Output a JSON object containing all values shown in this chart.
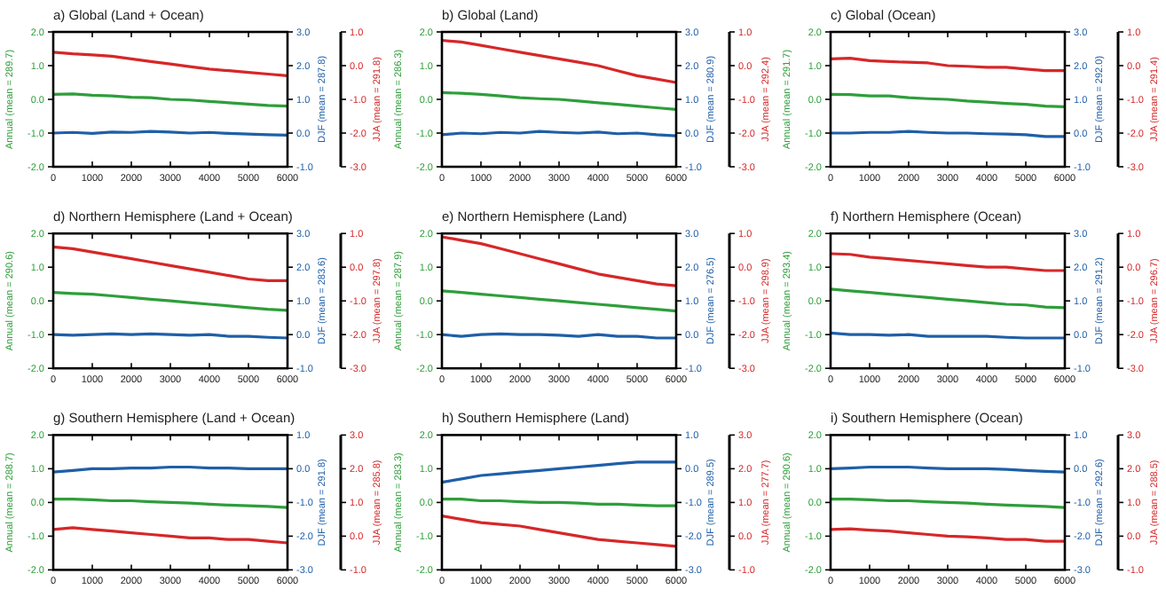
{
  "chart_data": [
    {
      "type": "line",
      "title": "a) Global (Land + Ocean)",
      "ylabel": "Annual (mean = 289.7)",
      "y2label": "DJF (mean = 287.8)",
      "y3label": "JJA (mean = 291.8)",
      "x": [
        0,
        500,
        1000,
        1500,
        2000,
        2500,
        3000,
        3500,
        4000,
        4500,
        5000,
        5500,
        6000
      ],
      "xlim": [
        0,
        6000
      ],
      "xticks": [
        0,
        1000,
        2000,
        3000,
        4000,
        5000,
        6000
      ],
      "ylim": [
        -2,
        2
      ],
      "yticks": [
        {
          "value": -2,
          "label": "-2.0"
        },
        {
          "value": -1,
          "label": "-1.0"
        },
        {
          "value": 0,
          "label": "0.0"
        },
        {
          "value": 1,
          "label": "1.0"
        },
        {
          "value": 2,
          "label": "2.0"
        }
      ],
      "y2lim": [
        -1,
        3
      ],
      "y2ticks": [
        {
          "value": -1,
          "label": "-1.0"
        },
        {
          "value": 0,
          "label": "0.0"
        },
        {
          "value": 1,
          "label": "1.0"
        },
        {
          "value": 2,
          "label": "2.0"
        },
        {
          "value": 3,
          "label": "3.0"
        }
      ],
      "y3lim": [
        -3,
        1
      ],
      "y3ticks": [
        {
          "value": -3,
          "label": "-3.0"
        },
        {
          "value": -2,
          "label": "-2.0"
        },
        {
          "value": -1,
          "label": "-1.0"
        },
        {
          "value": 0,
          "label": "0.0"
        },
        {
          "value": 1,
          "label": "1.0"
        }
      ],
      "grid": false,
      "line_style": "solid",
      "series": [
        {
          "color": "#2e9e3a",
          "values": [
            0.15,
            0.16,
            0.12,
            0.1,
            0.06,
            0.05,
            0.0,
            -0.02,
            -0.06,
            -0.1,
            -0.14,
            -0.18,
            -0.2
          ]
        },
        {
          "color": "#1f5fa8",
          "axis": "y2",
          "values": [
            0.0,
            0.02,
            -0.01,
            0.03,
            0.02,
            0.05,
            0.03,
            0.0,
            0.02,
            -0.01,
            -0.03,
            -0.05,
            -0.06
          ]
        },
        {
          "color": "#d62728",
          "axis": "y3",
          "values": [
            0.4,
            0.35,
            0.32,
            0.28,
            0.2,
            0.12,
            0.05,
            -0.03,
            -0.1,
            -0.15,
            -0.2,
            -0.25,
            -0.3
          ]
        }
      ]
    },
    {
      "type": "line",
      "title": "b) Global (Land)",
      "ylabel": "Annual (mean = 286.3)",
      "y2label": "DJF (mean = 280.9)",
      "y3label": "JJA (mean = 292.4)",
      "x": [
        0,
        500,
        1000,
        1500,
        2000,
        2500,
        3000,
        3500,
        4000,
        4500,
        5000,
        5500,
        6000
      ],
      "xlim": [
        0,
        6000
      ],
      "xticks": [
        0,
        1000,
        2000,
        3000,
        4000,
        5000,
        6000
      ],
      "ylim": [
        -2,
        2
      ],
      "yticks": [
        {
          "value": -2,
          "label": "-2.0"
        },
        {
          "value": -1,
          "label": "-1.0"
        },
        {
          "value": 0,
          "label": "0.0"
        },
        {
          "value": 1,
          "label": "1.0"
        },
        {
          "value": 2,
          "label": "2.0"
        }
      ],
      "y2lim": [
        -1,
        3
      ],
      "y2ticks": [
        {
          "value": -1,
          "label": "-1.0"
        },
        {
          "value": 0,
          "label": "0.0"
        },
        {
          "value": 1,
          "label": "1.0"
        },
        {
          "value": 2,
          "label": "2.0"
        },
        {
          "value": 3,
          "label": "3.0"
        }
      ],
      "y3lim": [
        -3,
        1
      ],
      "y3ticks": [
        {
          "value": -3,
          "label": "-3.0"
        },
        {
          "value": -2,
          "label": "-2.0"
        },
        {
          "value": -1,
          "label": "-1.0"
        },
        {
          "value": 0,
          "label": "0.0"
        },
        {
          "value": 1,
          "label": "1.0"
        }
      ],
      "grid": false,
      "line_style": "solid",
      "series": [
        {
          "color": "#2e9e3a",
          "values": [
            0.2,
            0.18,
            0.15,
            0.1,
            0.05,
            0.02,
            0.0,
            -0.05,
            -0.1,
            -0.15,
            -0.2,
            -0.25,
            -0.3
          ]
        },
        {
          "color": "#1f5fa8",
          "axis": "y2",
          "values": [
            -0.05,
            0.0,
            -0.02,
            0.02,
            0.0,
            0.05,
            0.02,
            0.0,
            0.03,
            -0.02,
            0.0,
            -0.05,
            -0.08
          ]
        },
        {
          "color": "#d62728",
          "axis": "y3",
          "values": [
            0.75,
            0.7,
            0.6,
            0.5,
            0.4,
            0.3,
            0.2,
            0.1,
            0.0,
            -0.15,
            -0.3,
            -0.4,
            -0.5
          ]
        }
      ]
    },
    {
      "type": "line",
      "title": "c) Global (Ocean)",
      "ylabel": "Annual (mean = 291.7)",
      "y2label": "DJF (mean = 292.0)",
      "y3label": "JJA (mean = 291.4)",
      "x": [
        0,
        500,
        1000,
        1500,
        2000,
        2500,
        3000,
        3500,
        4000,
        4500,
        5000,
        5500,
        6000
      ],
      "xlim": [
        0,
        6000
      ],
      "xticks": [
        0,
        1000,
        2000,
        3000,
        4000,
        5000,
        6000
      ],
      "ylim": [
        -2,
        2
      ],
      "yticks": [
        {
          "value": -2,
          "label": "-2.0"
        },
        {
          "value": -1,
          "label": "-1.0"
        },
        {
          "value": 0,
          "label": "0.0"
        },
        {
          "value": 1,
          "label": "1.0"
        },
        {
          "value": 2,
          "label": "2.0"
        }
      ],
      "y2lim": [
        -1,
        3
      ],
      "y2ticks": [
        {
          "value": -1,
          "label": "-1.0"
        },
        {
          "value": 0,
          "label": "0.0"
        },
        {
          "value": 1,
          "label": "1.0"
        },
        {
          "value": 2,
          "label": "2.0"
        },
        {
          "value": 3,
          "label": "3.0"
        }
      ],
      "y3lim": [
        -3,
        1
      ],
      "y3ticks": [
        {
          "value": -3,
          "label": "-3.0"
        },
        {
          "value": -2,
          "label": "-2.0"
        },
        {
          "value": -1,
          "label": "-1.0"
        },
        {
          "value": 0,
          "label": "0.0"
        },
        {
          "value": 1,
          "label": "1.0"
        }
      ],
      "grid": false,
      "line_style": "solid",
      "series": [
        {
          "color": "#2e9e3a",
          "values": [
            0.15,
            0.14,
            0.1,
            0.1,
            0.05,
            0.02,
            0.0,
            -0.05,
            -0.08,
            -0.12,
            -0.15,
            -0.2,
            -0.22
          ]
        },
        {
          "color": "#1f5fa8",
          "axis": "y2",
          "values": [
            0.0,
            0.0,
            0.02,
            0.02,
            0.05,
            0.02,
            0.0,
            0.0,
            -0.02,
            -0.03,
            -0.05,
            -0.1,
            -0.1
          ]
        },
        {
          "color": "#d62728",
          "axis": "y3",
          "values": [
            0.2,
            0.22,
            0.15,
            0.12,
            0.1,
            0.08,
            0.0,
            -0.02,
            -0.05,
            -0.05,
            -0.1,
            -0.15,
            -0.15
          ]
        }
      ]
    },
    {
      "type": "line",
      "title": "d) Northern Hemisphere (Land + Ocean)",
      "ylabel": "Annual (mean = 290.6)",
      "y2label": "DJF (mean = 283.6)",
      "y3label": "JJA (mean = 297.8)",
      "x": [
        0,
        500,
        1000,
        1500,
        2000,
        2500,
        3000,
        3500,
        4000,
        4500,
        5000,
        5500,
        6000
      ],
      "xlim": [
        0,
        6000
      ],
      "xticks": [
        0,
        1000,
        2000,
        3000,
        4000,
        5000,
        6000
      ],
      "ylim": [
        -2,
        2
      ],
      "yticks": [
        {
          "value": -2,
          "label": "-2.0"
        },
        {
          "value": -1,
          "label": "-1.0"
        },
        {
          "value": 0,
          "label": "0.0"
        },
        {
          "value": 1,
          "label": "1.0"
        },
        {
          "value": 2,
          "label": "2.0"
        }
      ],
      "y2lim": [
        -1,
        3
      ],
      "y2ticks": [
        {
          "value": -1,
          "label": "-1.0"
        },
        {
          "value": 0,
          "label": "0.0"
        },
        {
          "value": 1,
          "label": "1.0"
        },
        {
          "value": 2,
          "label": "2.0"
        },
        {
          "value": 3,
          "label": "3.0"
        }
      ],
      "y3lim": [
        -3,
        1
      ],
      "y3ticks": [
        {
          "value": -3,
          "label": "-3.0"
        },
        {
          "value": -2,
          "label": "-2.0"
        },
        {
          "value": -1,
          "label": "-1.0"
        },
        {
          "value": 0,
          "label": "0.0"
        },
        {
          "value": 1,
          "label": "1.0"
        }
      ],
      "grid": false,
      "line_style": "solid",
      "series": [
        {
          "color": "#2e9e3a",
          "values": [
            0.25,
            0.22,
            0.2,
            0.15,
            0.1,
            0.05,
            0.0,
            -0.05,
            -0.1,
            -0.15,
            -0.2,
            -0.25,
            -0.28
          ]
        },
        {
          "color": "#1f5fa8",
          "axis": "y2",
          "values": [
            0.0,
            -0.02,
            0.0,
            0.02,
            0.0,
            0.02,
            0.0,
            -0.02,
            0.0,
            -0.05,
            -0.05,
            -0.08,
            -0.1
          ]
        },
        {
          "color": "#d62728",
          "axis": "y3",
          "values": [
            0.6,
            0.55,
            0.45,
            0.35,
            0.25,
            0.15,
            0.05,
            -0.05,
            -0.15,
            -0.25,
            -0.35,
            -0.4,
            -0.4
          ]
        }
      ]
    },
    {
      "type": "line",
      "title": "e) Northern Hemisphere (Land)",
      "ylabel": "Annual (mean = 287.9)",
      "y2label": "DJF (mean = 276.5)",
      "y3label": "JJA (mean = 298.9)",
      "x": [
        0,
        500,
        1000,
        1500,
        2000,
        2500,
        3000,
        3500,
        4000,
        4500,
        5000,
        5500,
        6000
      ],
      "xlim": [
        0,
        6000
      ],
      "xticks": [
        0,
        1000,
        2000,
        3000,
        4000,
        5000,
        6000
      ],
      "ylim": [
        -2,
        2
      ],
      "yticks": [
        {
          "value": -2,
          "label": "-2.0"
        },
        {
          "value": -1,
          "label": "-1.0"
        },
        {
          "value": 0,
          "label": "0.0"
        },
        {
          "value": 1,
          "label": "1.0"
        },
        {
          "value": 2,
          "label": "2.0"
        }
      ],
      "y2lim": [
        -1,
        3
      ],
      "y2ticks": [
        {
          "value": -1,
          "label": "-1.0"
        },
        {
          "value": 0,
          "label": "0.0"
        },
        {
          "value": 1,
          "label": "1.0"
        },
        {
          "value": 2,
          "label": "2.0"
        },
        {
          "value": 3,
          "label": "3.0"
        }
      ],
      "y3lim": [
        -3,
        1
      ],
      "y3ticks": [
        {
          "value": -3,
          "label": "-3.0"
        },
        {
          "value": -2,
          "label": "-2.0"
        },
        {
          "value": -1,
          "label": "-1.0"
        },
        {
          "value": 0,
          "label": "0.0"
        },
        {
          "value": 1,
          "label": "1.0"
        }
      ],
      "grid": false,
      "line_style": "solid",
      "series": [
        {
          "color": "#2e9e3a",
          "values": [
            0.3,
            0.25,
            0.2,
            0.15,
            0.1,
            0.05,
            0.0,
            -0.05,
            -0.1,
            -0.15,
            -0.2,
            -0.25,
            -0.3
          ]
        },
        {
          "color": "#1f5fa8",
          "axis": "y2",
          "values": [
            0.0,
            -0.05,
            0.0,
            0.02,
            0.0,
            0.0,
            -0.02,
            -0.05,
            0.0,
            -0.05,
            -0.05,
            -0.1,
            -0.1
          ]
        },
        {
          "color": "#d62728",
          "axis": "y3",
          "values": [
            0.9,
            0.8,
            0.7,
            0.55,
            0.4,
            0.25,
            0.1,
            -0.05,
            -0.2,
            -0.3,
            -0.4,
            -0.5,
            -0.55
          ]
        }
      ]
    },
    {
      "type": "line",
      "title": "f) Northern Hemisphere (Ocean)",
      "ylabel": "Annual (mean = 293.4)",
      "y2label": "DJF (mean = 291.2)",
      "y3label": "JJA (mean = 296.7)",
      "x": [
        0,
        500,
        1000,
        1500,
        2000,
        2500,
        3000,
        3500,
        4000,
        4500,
        5000,
        5500,
        6000
      ],
      "xlim": [
        0,
        6000
      ],
      "xticks": [
        0,
        1000,
        2000,
        3000,
        4000,
        5000,
        6000
      ],
      "ylim": [
        -2,
        2
      ],
      "yticks": [
        {
          "value": -2,
          "label": "-2.0"
        },
        {
          "value": -1,
          "label": "-1.0"
        },
        {
          "value": 0,
          "label": "0.0"
        },
        {
          "value": 1,
          "label": "1.0"
        },
        {
          "value": 2,
          "label": "2.0"
        }
      ],
      "y2lim": [
        -1,
        3
      ],
      "y2ticks": [
        {
          "value": -1,
          "label": "-1.0"
        },
        {
          "value": 0,
          "label": "0.0"
        },
        {
          "value": 1,
          "label": "1.0"
        },
        {
          "value": 2,
          "label": "2.0"
        },
        {
          "value": 3,
          "label": "3.0"
        }
      ],
      "y3lim": [
        -3,
        1
      ],
      "y3ticks": [
        {
          "value": -3,
          "label": "-3.0"
        },
        {
          "value": -2,
          "label": "-2.0"
        },
        {
          "value": -1,
          "label": "-1.0"
        },
        {
          "value": 0,
          "label": "0.0"
        },
        {
          "value": 1,
          "label": "1.0"
        }
      ],
      "grid": false,
      "line_style": "solid",
      "series": [
        {
          "color": "#2e9e3a",
          "values": [
            0.35,
            0.3,
            0.25,
            0.2,
            0.15,
            0.1,
            0.05,
            0.0,
            -0.05,
            -0.1,
            -0.12,
            -0.18,
            -0.2
          ]
        },
        {
          "color": "#1f5fa8",
          "axis": "y2",
          "values": [
            0.05,
            0.0,
            0.0,
            -0.02,
            0.0,
            -0.05,
            -0.05,
            -0.05,
            -0.05,
            -0.08,
            -0.1,
            -0.1,
            -0.1
          ]
        },
        {
          "color": "#d62728",
          "axis": "y3",
          "values": [
            0.4,
            0.38,
            0.3,
            0.25,
            0.2,
            0.15,
            0.1,
            0.05,
            0.0,
            0.0,
            -0.05,
            -0.1,
            -0.1
          ]
        }
      ]
    },
    {
      "type": "line",
      "title": "g) Southern Hemisphere (Land + Ocean)",
      "ylabel": "Annual (mean = 288.7)",
      "y2label": "DJF (mean = 291.8)",
      "y3label": "JJA (mean = 285.8)",
      "x": [
        0,
        500,
        1000,
        1500,
        2000,
        2500,
        3000,
        3500,
        4000,
        4500,
        5000,
        5500,
        6000
      ],
      "xlim": [
        0,
        6000
      ],
      "xticks": [
        0,
        1000,
        2000,
        3000,
        4000,
        5000,
        6000
      ],
      "ylim": [
        -2,
        2
      ],
      "yticks": [
        {
          "value": -2,
          "label": "-2.0"
        },
        {
          "value": -1,
          "label": "-1.0"
        },
        {
          "value": 0,
          "label": "0.0"
        },
        {
          "value": 1,
          "label": "1.0"
        },
        {
          "value": 2,
          "label": "2.0"
        }
      ],
      "y2lim": [
        -3,
        1
      ],
      "y2ticks": [
        {
          "value": -3,
          "label": "-3.0"
        },
        {
          "value": -2,
          "label": "-2.0"
        },
        {
          "value": -1,
          "label": "-1.0"
        },
        {
          "value": 0,
          "label": "0.0"
        },
        {
          "value": 1,
          "label": "1.0"
        }
      ],
      "y3lim": [
        -1,
        3
      ],
      "y3ticks": [
        {
          "value": -1,
          "label": "-1.0"
        },
        {
          "value": 0,
          "label": "0.0"
        },
        {
          "value": 1,
          "label": "1.0"
        },
        {
          "value": 2,
          "label": "2.0"
        },
        {
          "value": 3,
          "label": "3.0"
        }
      ],
      "grid": false,
      "line_style": "solid",
      "series": [
        {
          "color": "#2e9e3a",
          "values": [
            0.1,
            0.1,
            0.08,
            0.05,
            0.05,
            0.02,
            0.0,
            -0.02,
            -0.05,
            -0.08,
            -0.1,
            -0.12,
            -0.15
          ]
        },
        {
          "color": "#1f5fa8",
          "axis": "y2",
          "values": [
            -0.1,
            -0.05,
            0.0,
            0.0,
            0.02,
            0.02,
            0.05,
            0.05,
            0.02,
            0.02,
            0.0,
            0.0,
            0.0
          ]
        },
        {
          "color": "#d62728",
          "axis": "y3",
          "values": [
            0.2,
            0.25,
            0.2,
            0.15,
            0.1,
            0.05,
            0.0,
            -0.05,
            -0.05,
            -0.1,
            -0.1,
            -0.15,
            -0.2
          ]
        }
      ]
    },
    {
      "type": "line",
      "title": "h) Southern Hemisphere (Land)",
      "ylabel": "Annual (mean = 283.3)",
      "y2label": "DJF (mean = 289.5)",
      "y3label": "JJA (mean = 277.7)",
      "x": [
        0,
        500,
        1000,
        1500,
        2000,
        2500,
        3000,
        3500,
        4000,
        4500,
        5000,
        5500,
        6000
      ],
      "xlim": [
        0,
        6000
      ],
      "xticks": [
        0,
        1000,
        2000,
        3000,
        4000,
        5000,
        6000
      ],
      "ylim": [
        -2,
        2
      ],
      "yticks": [
        {
          "value": -2,
          "label": "-2.0"
        },
        {
          "value": -1,
          "label": "-1.0"
        },
        {
          "value": 0,
          "label": "0.0"
        },
        {
          "value": 1,
          "label": "1.0"
        },
        {
          "value": 2,
          "label": "2.0"
        }
      ],
      "y2lim": [
        -3,
        1
      ],
      "y2ticks": [
        {
          "value": -3,
          "label": "-3.0"
        },
        {
          "value": -2,
          "label": "-2.0"
        },
        {
          "value": -1,
          "label": "-1.0"
        },
        {
          "value": 0,
          "label": "0.0"
        },
        {
          "value": 1,
          "label": "1.0"
        }
      ],
      "y3lim": [
        -1,
        3
      ],
      "y3ticks": [
        {
          "value": -1,
          "label": "-1.0"
        },
        {
          "value": 0,
          "label": "0.0"
        },
        {
          "value": 1,
          "label": "1.0"
        },
        {
          "value": 2,
          "label": "2.0"
        },
        {
          "value": 3,
          "label": "3.0"
        }
      ],
      "grid": false,
      "line_style": "solid",
      "series": [
        {
          "color": "#2e9e3a",
          "values": [
            0.1,
            0.1,
            0.05,
            0.05,
            0.02,
            0.0,
            0.0,
            -0.02,
            -0.05,
            -0.05,
            -0.08,
            -0.1,
            -0.1
          ]
        },
        {
          "color": "#1f5fa8",
          "axis": "y2",
          "values": [
            -0.4,
            -0.3,
            -0.2,
            -0.15,
            -0.1,
            -0.05,
            0.0,
            0.05,
            0.1,
            0.15,
            0.2,
            0.2,
            0.2
          ]
        },
        {
          "color": "#d62728",
          "axis": "y3",
          "values": [
            0.6,
            0.5,
            0.4,
            0.35,
            0.3,
            0.2,
            0.1,
            0.0,
            -0.1,
            -0.15,
            -0.2,
            -0.25,
            -0.3
          ]
        }
      ]
    },
    {
      "type": "line",
      "title": "i) Southern Hemisphere (Ocean)",
      "ylabel": "Annual (mean = 290.6)",
      "y2label": "DJF (mean = 292.6)",
      "y3label": "JJA (mean = 288.5)",
      "x": [
        0,
        500,
        1000,
        1500,
        2000,
        2500,
        3000,
        3500,
        4000,
        4500,
        5000,
        5500,
        6000
      ],
      "xlim": [
        0,
        6000
      ],
      "xticks": [
        0,
        1000,
        2000,
        3000,
        4000,
        5000,
        6000
      ],
      "ylim": [
        -2,
        2
      ],
      "yticks": [
        {
          "value": -2,
          "label": "-2.0"
        },
        {
          "value": -1,
          "label": "-1.0"
        },
        {
          "value": 0,
          "label": "0.0"
        },
        {
          "value": 1,
          "label": "1.0"
        },
        {
          "value": 2,
          "label": "2.0"
        }
      ],
      "y2lim": [
        -3,
        1
      ],
      "y2ticks": [
        {
          "value": -3,
          "label": "-3.0"
        },
        {
          "value": -2,
          "label": "-2.0"
        },
        {
          "value": -1,
          "label": "-1.0"
        },
        {
          "value": 0,
          "label": "0.0"
        },
        {
          "value": 1,
          "label": "1.0"
        }
      ],
      "y3lim": [
        -1,
        3
      ],
      "y3ticks": [
        {
          "value": -1,
          "label": "-1.0"
        },
        {
          "value": 0,
          "label": "0.0"
        },
        {
          "value": 1,
          "label": "1.0"
        },
        {
          "value": 2,
          "label": "2.0"
        },
        {
          "value": 3,
          "label": "3.0"
        }
      ],
      "grid": false,
      "line_style": "solid",
      "series": [
        {
          "color": "#2e9e3a",
          "values": [
            0.1,
            0.1,
            0.08,
            0.05,
            0.05,
            0.02,
            0.0,
            -0.02,
            -0.05,
            -0.08,
            -0.1,
            -0.12,
            -0.15
          ]
        },
        {
          "color": "#1f5fa8",
          "axis": "y2",
          "values": [
            0.0,
            0.02,
            0.05,
            0.05,
            0.05,
            0.02,
            0.0,
            0.0,
            0.0,
            -0.02,
            -0.05,
            -0.08,
            -0.1
          ]
        },
        {
          "color": "#d62728",
          "axis": "y3",
          "values": [
            0.2,
            0.22,
            0.18,
            0.15,
            0.1,
            0.05,
            0.0,
            -0.02,
            -0.05,
            -0.1,
            -0.1,
            -0.15,
            -0.15
          ]
        }
      ]
    }
  ]
}
